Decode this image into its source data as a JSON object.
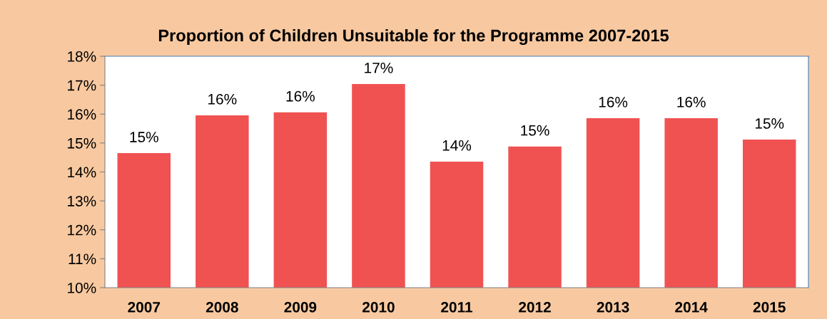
{
  "chart_data": {
    "type": "bar",
    "title": "Proportion of Children Unsuitable for the Programme 2007-2015",
    "categories": [
      "2007",
      "2008",
      "2009",
      "2010",
      "2011",
      "2012",
      "2013",
      "2014",
      "2015"
    ],
    "values": [
      14.65,
      15.96,
      16.06,
      17.04,
      14.36,
      14.88,
      15.86,
      15.86,
      15.12
    ],
    "value_labels": [
      "15%",
      "16%",
      "16%",
      "17%",
      "14%",
      "15%",
      "16%",
      "16%",
      "15%"
    ],
    "color": "#f05252",
    "ylim": [
      10,
      18
    ],
    "yticks": [
      {
        "value": 10,
        "label": "10%"
      },
      {
        "value": 11,
        "label": "11%"
      },
      {
        "value": 12,
        "label": "12%"
      },
      {
        "value": 13,
        "label": "13%"
      },
      {
        "value": 14,
        "label": "14%"
      },
      {
        "value": 15,
        "label": "15%"
      },
      {
        "value": 16,
        "label": "16%"
      },
      {
        "value": 17,
        "label": "17%"
      },
      {
        "value": 18,
        "label": "18%"
      }
    ],
    "grid": false,
    "legend": false
  }
}
